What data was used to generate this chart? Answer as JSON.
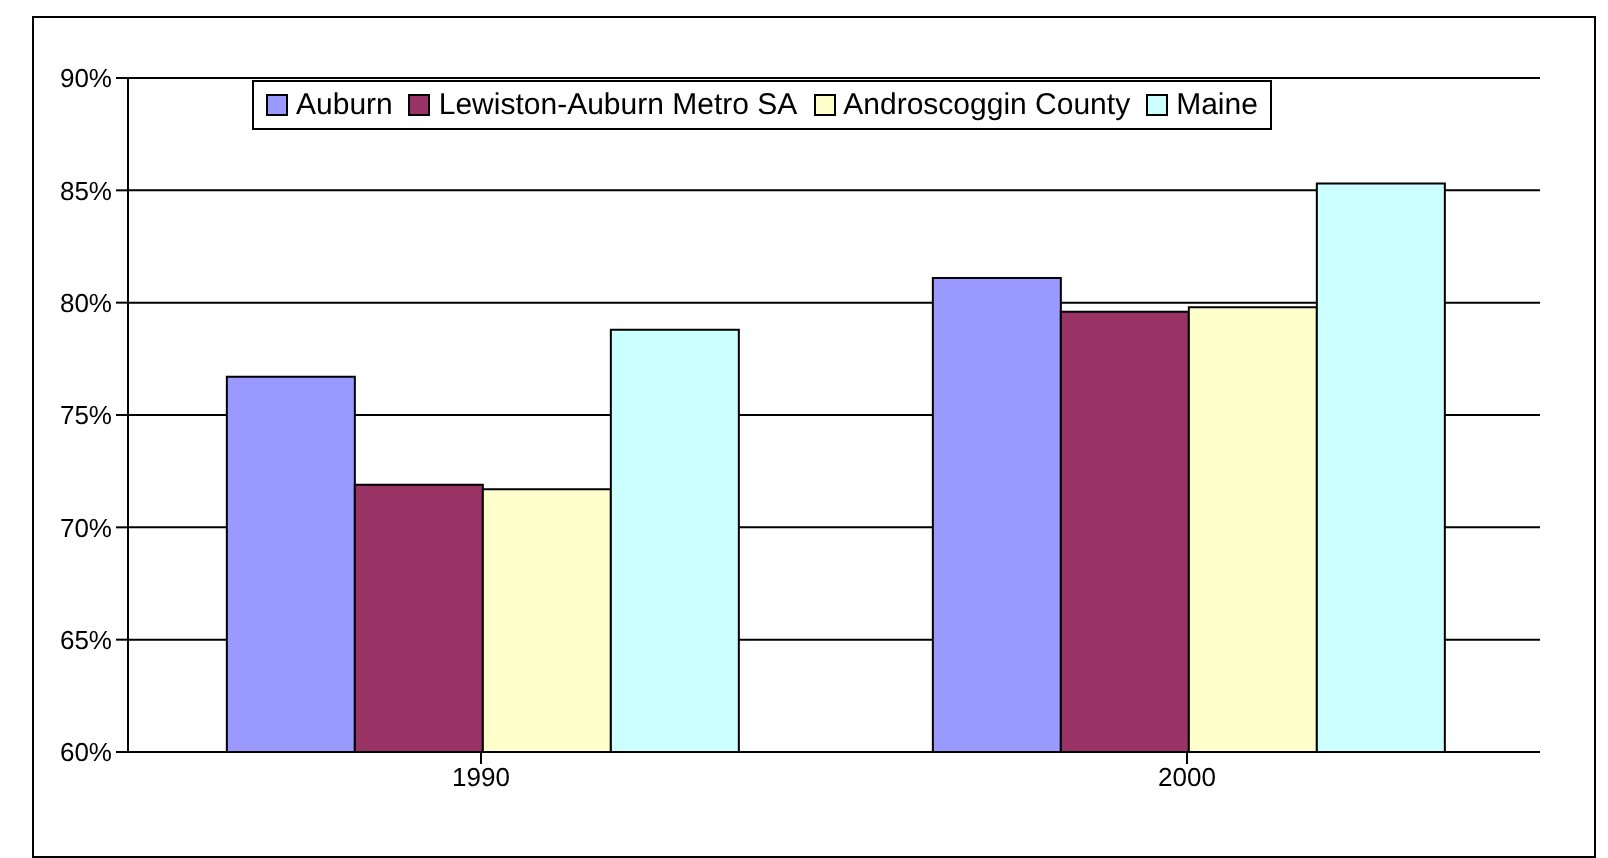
{
  "chart_data": {
    "type": "bar",
    "categories": [
      "1990",
      "2000"
    ],
    "series": [
      {
        "name": "Auburn",
        "color": "#9999ff",
        "values": [
          76.7,
          81.1
        ]
      },
      {
        "name": "Lewiston-Auburn Metro SA",
        "color": "#993366",
        "values": [
          71.9,
          79.6
        ]
      },
      {
        "name": "Androscoggin County",
        "color": "#ffffcc",
        "values": [
          71.7,
          79.8
        ]
      },
      {
        "name": "Maine",
        "color": "#ccffff",
        "values": [
          78.8,
          85.3
        ]
      }
    ],
    "ylim": [
      60,
      90
    ],
    "yticks": [
      {
        "value": 60,
        "label": "60%"
      },
      {
        "value": 65,
        "label": "65%"
      },
      {
        "value": 70,
        "label": "70%"
      },
      {
        "value": 75,
        "label": "75%"
      },
      {
        "value": 80,
        "label": "80%"
      },
      {
        "value": 85,
        "label": "85%"
      },
      {
        "value": 90,
        "label": "90%"
      }
    ],
    "grid": "y",
    "legend": "top"
  }
}
